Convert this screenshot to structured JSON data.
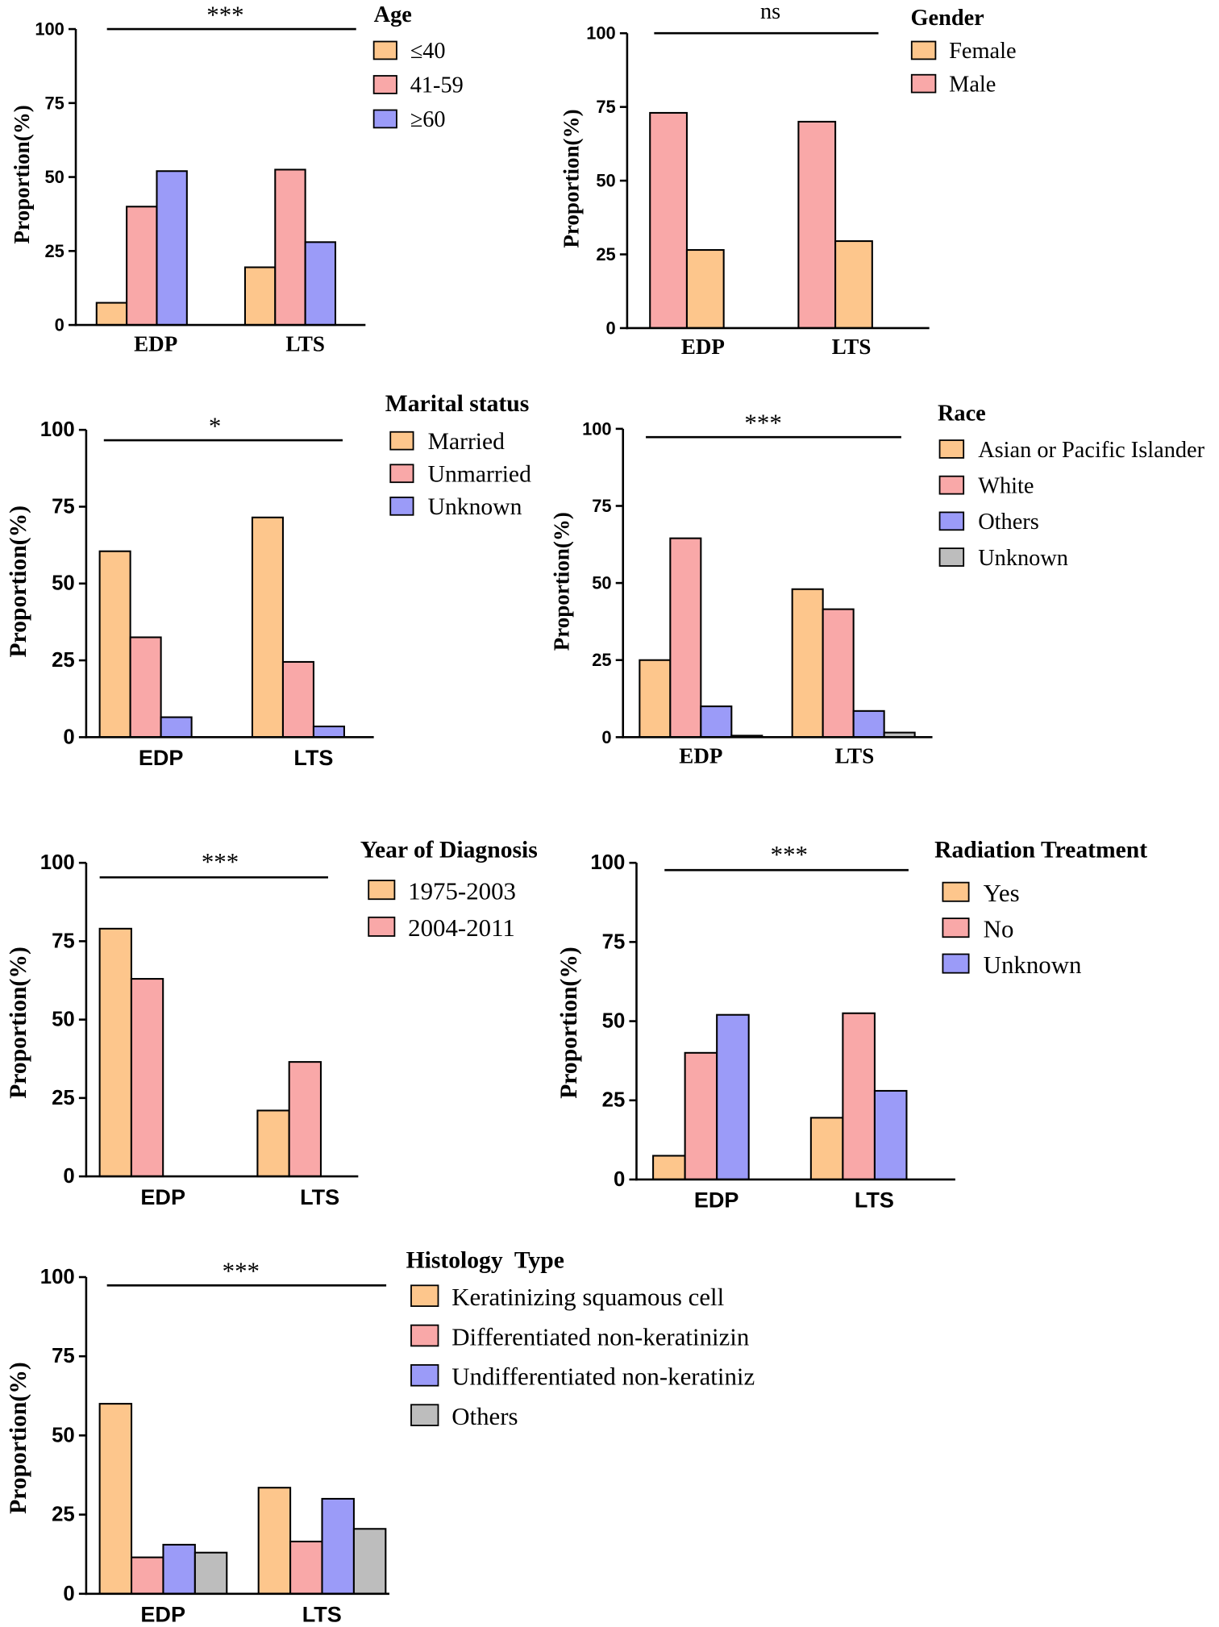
{
  "chart_data": [
    {
      "type": "bar",
      "title": "Age",
      "categories": [
        "EDP",
        "LTS"
      ],
      "series": [
        {
          "name": "≤40",
          "values": [
            7.5,
            19.5
          ],
          "color": "#FDC68C"
        },
        {
          "name": "41-59",
          "values": [
            40,
            52.5
          ],
          "color": "#F9A8A8"
        },
        {
          "name": "≥60",
          "values": [
            52,
            28
          ],
          "color": "#9B9BF8"
        }
      ],
      "legend_order": [
        0,
        1,
        2
      ],
      "ylabel": "Proportion(%)",
      "ylim": [
        0,
        100
      ],
      "yticks": [
        0,
        25,
        50,
        75,
        100
      ],
      "significance": "***"
    },
    {
      "type": "bar",
      "title": "Gender",
      "categories": [
        "EDP",
        "LTS"
      ],
      "series": [
        {
          "name": "Male",
          "values": [
            73,
            70
          ],
          "color": "#F9A8A8"
        },
        {
          "name": "Female",
          "values": [
            26.5,
            29.5
          ],
          "color": "#FDC68C"
        }
      ],
      "legend_order": [
        1,
        0
      ],
      "ylabel": "Proportion(%)",
      "ylim": [
        0,
        100
      ],
      "yticks": [
        0,
        25,
        50,
        75,
        100
      ],
      "significance": "ns"
    },
    {
      "type": "bar",
      "title": "Marital status",
      "categories": [
        "EDP",
        "LTS"
      ],
      "series": [
        {
          "name": "Married",
          "values": [
            60.5,
            71.5
          ],
          "color": "#FDC68C"
        },
        {
          "name": "Unmarried",
          "values": [
            32.5,
            24.5
          ],
          "color": "#F9A8A8"
        },
        {
          "name": "Unknown",
          "values": [
            6.5,
            3.5
          ],
          "color": "#9B9BF8"
        }
      ],
      "legend_order": [
        0,
        1,
        2
      ],
      "ylabel": "Proportion(%)",
      "ylim": [
        0,
        100
      ],
      "yticks": [
        0,
        25,
        50,
        75,
        100
      ],
      "significance": "*"
    },
    {
      "type": "bar",
      "title": "Race",
      "categories": [
        "EDP",
        "LTS"
      ],
      "series": [
        {
          "name": "Asian or Pacific Islander",
          "values": [
            25,
            48
          ],
          "color": "#FDC68C"
        },
        {
          "name": "White",
          "values": [
            64.5,
            41.5
          ],
          "color": "#F9A8A8"
        },
        {
          "name": "Others",
          "values": [
            10,
            8.5
          ],
          "color": "#9B9BF8"
        },
        {
          "name": "Unknown",
          "values": [
            0.5,
            1.5
          ],
          "color": "#BDBDBD"
        }
      ],
      "legend_order": [
        0,
        1,
        2,
        3
      ],
      "ylabel": "Proportion(%)",
      "ylim": [
        0,
        100
      ],
      "yticks": [
        0,
        25,
        50,
        75,
        100
      ],
      "significance": "***"
    },
    {
      "type": "bar",
      "title": "Year of Diagnosis",
      "categories": [
        "EDP",
        "LTS"
      ],
      "series": [
        {
          "name": "1975-2003",
          "values": [
            79,
            21
          ],
          "color": "#FDC68C"
        },
        {
          "name": "2004-2011",
          "values": [
            63,
            36.5
          ],
          "color": "#F9A8A8"
        }
      ],
      "legend_order": [
        0,
        1
      ],
      "ylabel": "Proportion(%)",
      "ylim": [
        0,
        100
      ],
      "yticks": [
        0,
        25,
        50,
        75,
        100
      ],
      "significance": "***"
    },
    {
      "type": "bar",
      "title": "Radiation Treatment",
      "categories": [
        "EDP",
        "LTS"
      ],
      "series": [
        {
          "name": "Yes",
          "values": [
            7.5,
            19.5
          ],
          "color": "#FDC68C"
        },
        {
          "name": "No",
          "values": [
            40,
            52.5
          ],
          "color": "#F9A8A8"
        },
        {
          "name": "Unknown",
          "values": [
            52,
            28
          ],
          "color": "#9B9BF8"
        }
      ],
      "legend_order": [
        0,
        1,
        2
      ],
      "ylabel": "Proportion(%)",
      "ylim": [
        0,
        100
      ],
      "yticks": [
        0,
        25,
        50,
        75,
        100
      ],
      "significance": "***"
    },
    {
      "type": "bar",
      "title": "Histology  Type",
      "categories": [
        "EDP",
        "LTS"
      ],
      "series": [
        {
          "name": "Keratinizing squamous cell",
          "values": [
            60,
            33.5
          ],
          "color": "#FDC68C"
        },
        {
          "name": "Differentiated non-keratinizin",
          "values": [
            11.5,
            16.5
          ],
          "color": "#F9A8A8"
        },
        {
          "name": "Undifferentiated non-keratiniz",
          "values": [
            15.5,
            30
          ],
          "color": "#9B9BF8"
        },
        {
          "name": "Others",
          "values": [
            13,
            20.5
          ],
          "color": "#BDBDBD"
        }
      ],
      "legend_order": [
        0,
        1,
        2,
        3
      ],
      "ylabel": "Proportion(%)",
      "ylim": [
        0,
        100
      ],
      "yticks": [
        0,
        25,
        50,
        75,
        100
      ],
      "significance": "***"
    }
  ]
}
